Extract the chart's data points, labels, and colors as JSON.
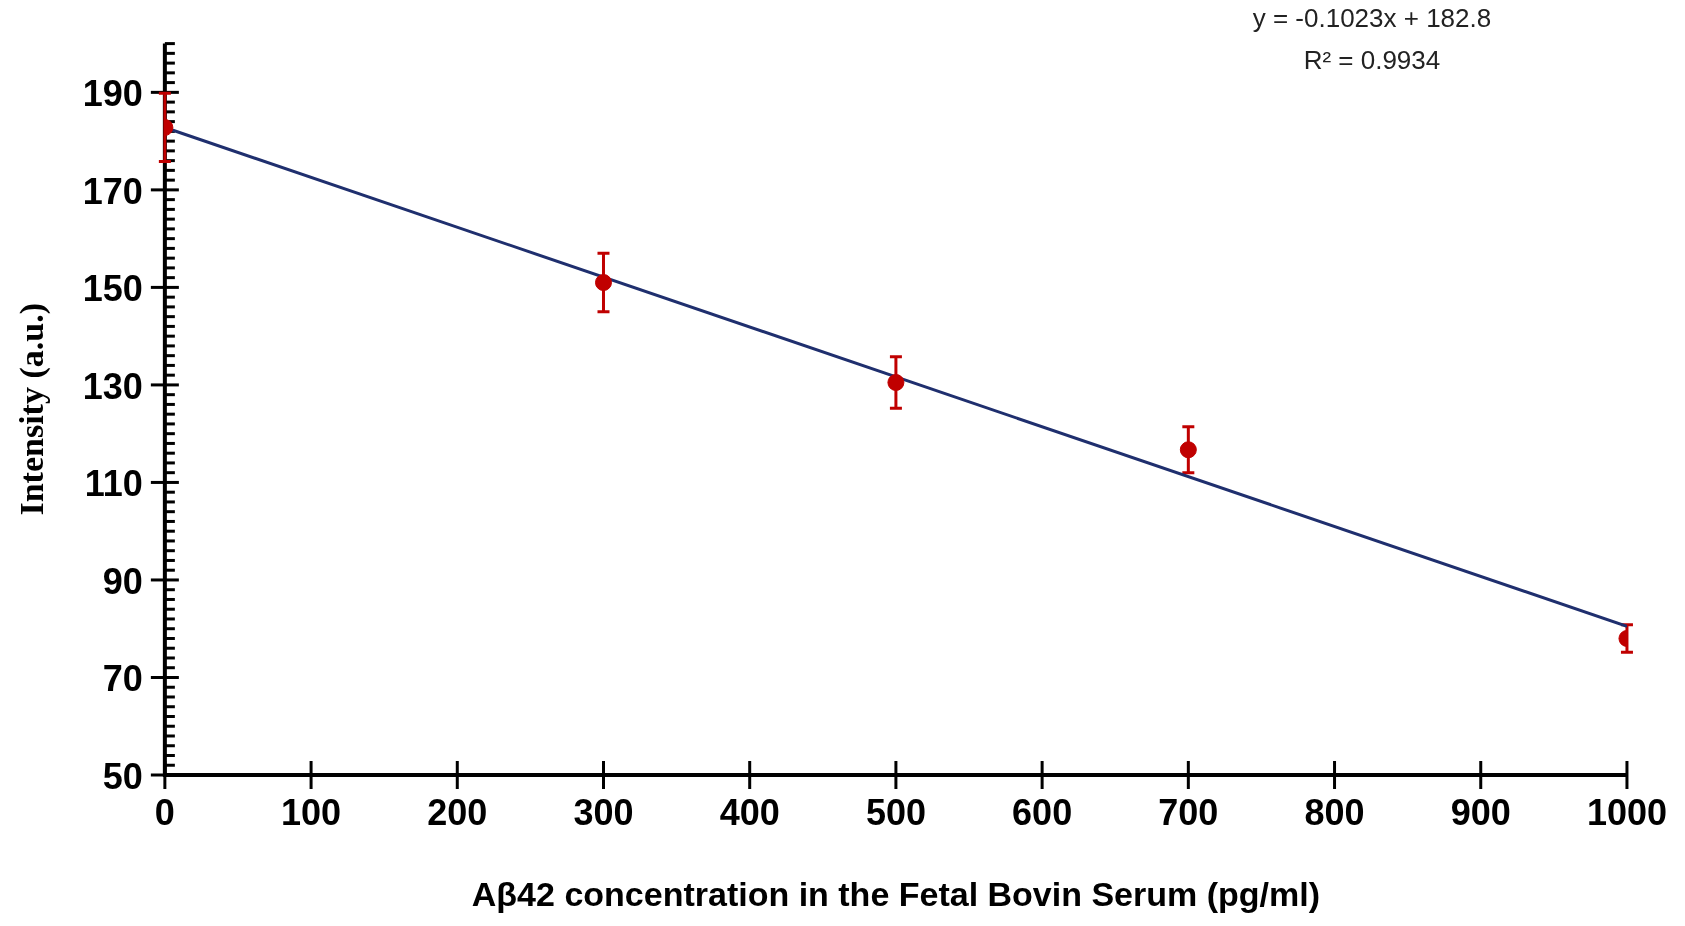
{
  "chart_data": {
    "type": "scatter",
    "xlabel": "Aβ42 concentration in the Fetal Bovin Serum (pg/ml)",
    "ylabel": "Intensity (a.u.)",
    "annotations": [
      "y = -0.1023x + 182.8",
      "R² = 0.9934"
    ],
    "series": [
      {
        "type": "scatter",
        "color": "#c00000",
        "x": [
          0,
          300,
          500,
          700,
          1000
        ],
        "values": [
          182.8,
          151,
          130.5,
          116.7,
          78
        ],
        "errors": [
          7,
          6,
          5.3,
          4.7,
          2.8
        ]
      },
      {
        "type": "line",
        "marker": "none",
        "color": "#1f2f6e",
        "x": [
          0,
          1000
        ],
        "values": [
          182.8,
          80.5
        ]
      }
    ],
    "xlim": [
      0,
      1000
    ],
    "xticks": [
      0,
      100,
      200,
      300,
      400,
      500,
      600,
      700,
      800,
      900,
      1000
    ],
    "ylim": [
      50,
      200
    ],
    "yticks": [
      50,
      {
        "value": 52,
        "label": null
      },
      {
        "value": 54,
        "label": null
      },
      {
        "value": 56,
        "label": null
      },
      {
        "value": 58,
        "label": null
      },
      {
        "value": 60,
        "label": null
      },
      {
        "value": 62,
        "label": null
      },
      {
        "value": 64,
        "label": null
      },
      {
        "value": 66,
        "label": null
      },
      {
        "value": 68,
        "label": null
      },
      70,
      {
        "value": 72,
        "label": null
      },
      {
        "value": 74,
        "label": null
      },
      {
        "value": 76,
        "label": null
      },
      {
        "value": 78,
        "label": null
      },
      {
        "value": 80,
        "label": null
      },
      {
        "value": 82,
        "label": null
      },
      {
        "value": 84,
        "label": null
      },
      {
        "value": 86,
        "label": null
      },
      {
        "value": 88,
        "label": null
      },
      90,
      {
        "value": 92,
        "label": null
      },
      {
        "value": 94,
        "label": null
      },
      {
        "value": 96,
        "label": null
      },
      {
        "value": 98,
        "label": null
      },
      {
        "value": 100,
        "label": null
      },
      {
        "value": 102,
        "label": null
      },
      {
        "value": 104,
        "label": null
      },
      {
        "value": 106,
        "label": null
      },
      {
        "value": 108,
        "label": null
      },
      110,
      {
        "value": 112,
        "label": null
      },
      {
        "value": 114,
        "label": null
      },
      {
        "value": 116,
        "label": null
      },
      {
        "value": 118,
        "label": null
      },
      {
        "value": 120,
        "label": null
      },
      {
        "value": 122,
        "label": null
      },
      {
        "value": 124,
        "label": null
      },
      {
        "value": 126,
        "label": null
      },
      {
        "value": 128,
        "label": null
      },
      130,
      {
        "value": 132,
        "label": null
      },
      {
        "value": 134,
        "label": null
      },
      {
        "value": 136,
        "label": null
      },
      {
        "value": 138,
        "label": null
      },
      {
        "value": 140,
        "label": null
      },
      {
        "value": 142,
        "label": null
      },
      {
        "value": 144,
        "label": null
      },
      {
        "value": 146,
        "label": null
      },
      {
        "value": 148,
        "label": null
      },
      150,
      {
        "value": 152,
        "label": null
      },
      {
        "value": 154,
        "label": null
      },
      {
        "value": 156,
        "label": null
      },
      {
        "value": 158,
        "label": null
      },
      {
        "value": 160,
        "label": null
      },
      {
        "value": 162,
        "label": null
      },
      {
        "value": 164,
        "label": null
      },
      {
        "value": 166,
        "label": null
      },
      {
        "value": 168,
        "label": null
      },
      170,
      {
        "value": 172,
        "label": null
      },
      {
        "value": 174,
        "label": null
      },
      {
        "value": 176,
        "label": null
      },
      {
        "value": 178,
        "label": null
      },
      {
        "value": 180,
        "label": null
      },
      {
        "value": 182,
        "label": null
      },
      {
        "value": 184,
        "label": null
      },
      {
        "value": 186,
        "label": null
      },
      {
        "value": 188,
        "label": null
      },
      190,
      {
        "value": 192,
        "label": null
      },
      {
        "value": 194,
        "label": null
      },
      {
        "value": 196,
        "label": null
      },
      {
        "value": 198,
        "label": null
      },
      {
        "value": 200,
        "label": null
      }
    ],
    "grid": false,
    "legend": false,
    "marker": "circle",
    "line_style": "solid"
  }
}
